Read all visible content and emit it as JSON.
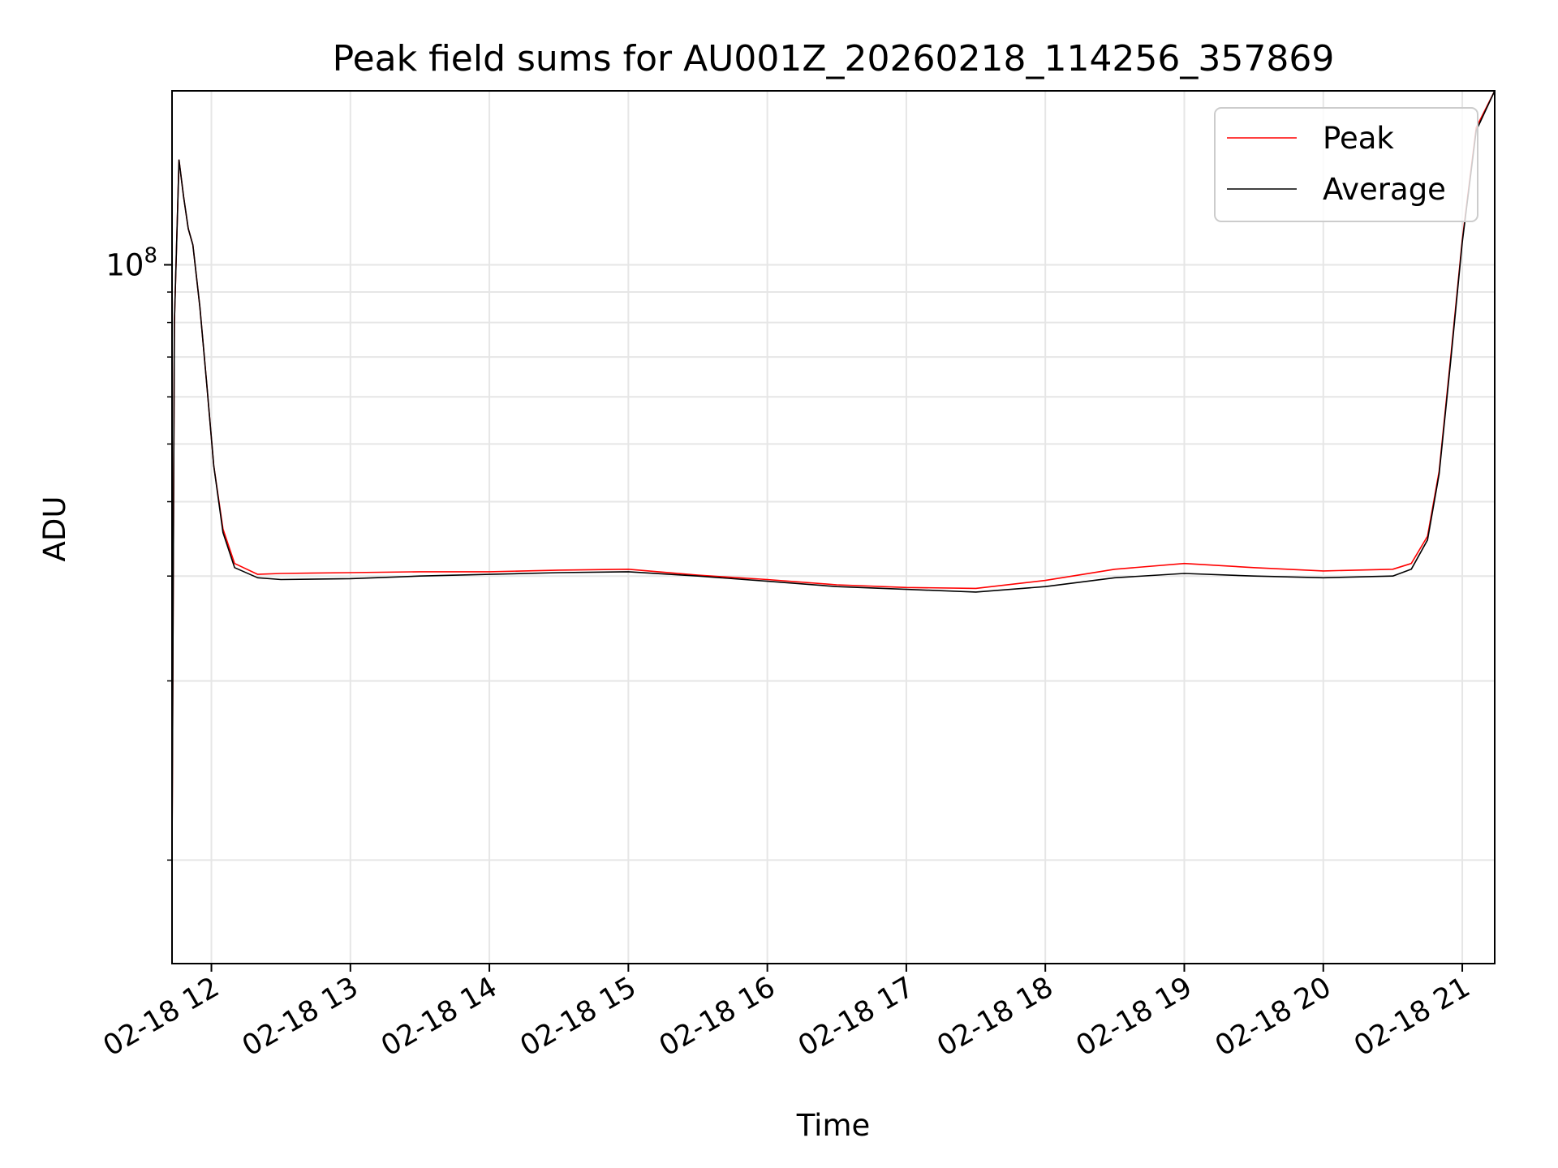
{
  "chart_data": {
    "type": "line",
    "title": "Peak field sums for AU001Z_20260218_114256_357869",
    "xlabel": "Time",
    "ylabel": "ADU",
    "x_scale": "time",
    "y_scale": "log",
    "xlim": [
      "2026-02-18 11:43",
      "2026-02-18 21:14"
    ],
    "ylim": [
      6700000,
      196000000
    ],
    "x_ticks": [
      {
        "value": "2026-02-18 12:00",
        "label": "02-18 12"
      },
      {
        "value": "2026-02-18 13:00",
        "label": "02-18 13"
      },
      {
        "value": "2026-02-18 14:00",
        "label": "02-18 14"
      },
      {
        "value": "2026-02-18 15:00",
        "label": "02-18 15"
      },
      {
        "value": "2026-02-18 16:00",
        "label": "02-18 16"
      },
      {
        "value": "2026-02-18 17:00",
        "label": "02-18 17"
      },
      {
        "value": "2026-02-18 18:00",
        "label": "02-18 18"
      },
      {
        "value": "2026-02-18 19:00",
        "label": "02-18 19"
      },
      {
        "value": "2026-02-18 20:00",
        "label": "02-18 20"
      },
      {
        "value": "2026-02-18 21:00",
        "label": "02-18 21"
      }
    ],
    "y_major_ticks": [
      {
        "value": 100000000,
        "label_base": "10",
        "label_exp": "8"
      }
    ],
    "y_minor_ticks": [
      10000000,
      20000000,
      30000000,
      40000000,
      50000000,
      60000000,
      70000000,
      80000000,
      90000000
    ],
    "grid": true,
    "legend_position": "top-right",
    "series": [
      {
        "name": "Peak",
        "color": "#ff0000",
        "points": [
          [
            "2026-02-18 11:43",
            10000000
          ],
          [
            "2026-02-18 11:44",
            80000000
          ],
          [
            "2026-02-18 11:46",
            150000000
          ],
          [
            "2026-02-18 11:48",
            130000000
          ],
          [
            "2026-02-18 11:50",
            115000000
          ],
          [
            "2026-02-18 11:52",
            108000000
          ],
          [
            "2026-02-18 11:55",
            85000000
          ],
          [
            "2026-02-18 11:58",
            63000000
          ],
          [
            "2026-02-18 12:01",
            46000000
          ],
          [
            "2026-02-18 12:05",
            36000000
          ],
          [
            "2026-02-18 12:10",
            31500000
          ],
          [
            "2026-02-18 12:20",
            30200000
          ],
          [
            "2026-02-18 12:30",
            30300000
          ],
          [
            "2026-02-18 13:00",
            30400000
          ],
          [
            "2026-02-18 13:30",
            30500000
          ],
          [
            "2026-02-18 14:00",
            30500000
          ],
          [
            "2026-02-18 14:30",
            30700000
          ],
          [
            "2026-02-18 15:00",
            30800000
          ],
          [
            "2026-02-18 15:30",
            30100000
          ],
          [
            "2026-02-18 16:00",
            29600000
          ],
          [
            "2026-02-18 16:30",
            29000000
          ],
          [
            "2026-02-18 17:00",
            28700000
          ],
          [
            "2026-02-18 17:30",
            28600000
          ],
          [
            "2026-02-18 18:00",
            29500000
          ],
          [
            "2026-02-18 18:30",
            30800000
          ],
          [
            "2026-02-18 19:00",
            31500000
          ],
          [
            "2026-02-18 19:30",
            31000000
          ],
          [
            "2026-02-18 20:00",
            30600000
          ],
          [
            "2026-02-18 20:30",
            30800000
          ],
          [
            "2026-02-18 20:38",
            31500000
          ],
          [
            "2026-02-18 20:45",
            35000000
          ],
          [
            "2026-02-18 20:50",
            45000000
          ],
          [
            "2026-02-18 20:55",
            70000000
          ],
          [
            "2026-02-18 21:00",
            110000000
          ],
          [
            "2026-02-18 21:06",
            170000000
          ],
          [
            "2026-02-18 21:14",
            196000000
          ]
        ]
      },
      {
        "name": "Average",
        "color": "#000000",
        "points": [
          [
            "2026-02-18 11:43",
            10000000
          ],
          [
            "2026-02-18 11:44",
            80000000
          ],
          [
            "2026-02-18 11:46",
            150000000
          ],
          [
            "2026-02-18 11:48",
            130000000
          ],
          [
            "2026-02-18 11:50",
            115000000
          ],
          [
            "2026-02-18 11:52",
            108000000
          ],
          [
            "2026-02-18 11:55",
            85000000
          ],
          [
            "2026-02-18 11:58",
            63000000
          ],
          [
            "2026-02-18 12:01",
            46000000
          ],
          [
            "2026-02-18 12:05",
            35500000
          ],
          [
            "2026-02-18 12:10",
            31000000
          ],
          [
            "2026-02-18 12:20",
            29800000
          ],
          [
            "2026-02-18 12:30",
            29600000
          ],
          [
            "2026-02-18 13:00",
            29700000
          ],
          [
            "2026-02-18 13:30",
            30000000
          ],
          [
            "2026-02-18 14:00",
            30200000
          ],
          [
            "2026-02-18 14:30",
            30400000
          ],
          [
            "2026-02-18 15:00",
            30500000
          ],
          [
            "2026-02-18 15:30",
            30000000
          ],
          [
            "2026-02-18 16:00",
            29400000
          ],
          [
            "2026-02-18 16:30",
            28800000
          ],
          [
            "2026-02-18 17:00",
            28500000
          ],
          [
            "2026-02-18 17:30",
            28200000
          ],
          [
            "2026-02-18 18:00",
            28800000
          ],
          [
            "2026-02-18 18:30",
            29800000
          ],
          [
            "2026-02-18 19:00",
            30300000
          ],
          [
            "2026-02-18 19:30",
            30000000
          ],
          [
            "2026-02-18 20:00",
            29800000
          ],
          [
            "2026-02-18 20:30",
            30000000
          ],
          [
            "2026-02-18 20:38",
            30800000
          ],
          [
            "2026-02-18 20:45",
            34500000
          ],
          [
            "2026-02-18 20:50",
            44500000
          ],
          [
            "2026-02-18 20:55",
            69000000
          ],
          [
            "2026-02-18 21:00",
            109000000
          ],
          [
            "2026-02-18 21:06",
            168000000
          ],
          [
            "2026-02-18 21:14",
            196000000
          ]
        ]
      }
    ]
  }
}
